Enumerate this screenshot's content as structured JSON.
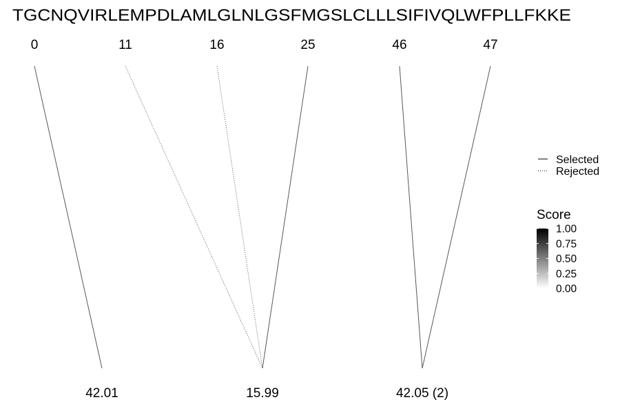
{
  "chart_data": {
    "type": "mass-spec-fragment-map",
    "sequence": "TGCNQVIRLEMPDLAMLGLNLGSFMGSLCLLLSIFIVQLWFPLLFKKE",
    "positions": [
      "0",
      "11",
      "16",
      "25",
      "46",
      "47"
    ],
    "fragments": [
      "42.01",
      "15.99",
      "42.05 (2)"
    ],
    "links": [
      {
        "from": 0,
        "to": 0,
        "status": "Selected",
        "score": 0.6
      },
      {
        "from": 1,
        "to": 1,
        "status": "Rejected",
        "score": 0.6
      },
      {
        "from": 2,
        "to": 1,
        "status": "Rejected",
        "score": 0.6
      },
      {
        "from": 3,
        "to": 1,
        "status": "Selected",
        "score": 0.6
      },
      {
        "from": 4,
        "to": 2,
        "status": "Selected",
        "score": 0.6
      },
      {
        "from": 5,
        "to": 2,
        "status": "Selected",
        "score": 0.6
      }
    ],
    "legend": {
      "linetype": [
        {
          "label": "Selected",
          "style": "solid"
        },
        {
          "label": "Rejected",
          "style": "dotted"
        }
      ],
      "score": {
        "title": "Score",
        "ticks": [
          "1.00",
          "0.75",
          "0.50",
          "0.25",
          "0.00"
        ],
        "range": [
          0,
          1
        ],
        "color_high": "#000000",
        "color_low": "#ffffff"
      }
    }
  }
}
